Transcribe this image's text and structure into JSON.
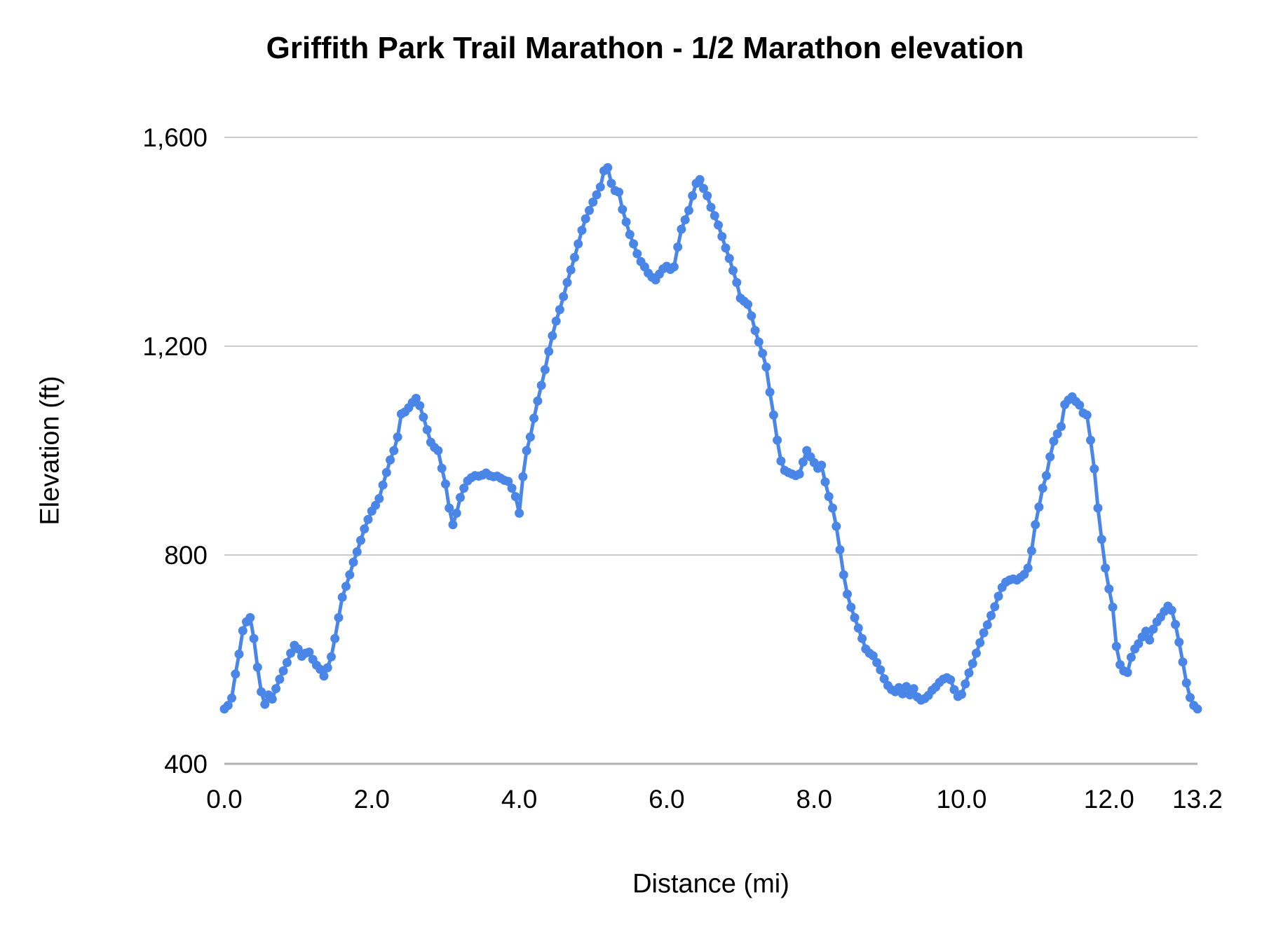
{
  "colors": {
    "series_blue": "#4a86e8",
    "gridline": "#cccccc",
    "baseline": "#b0b0b0",
    "text": "#000000",
    "background": "#ffffff"
  },
  "chart_data": {
    "type": "line",
    "title": "Griffith Park Trail Marathon - 1/2 Marathon elevation",
    "xlabel": "Distance (mi)",
    "ylabel": "Elevation (ft)",
    "xlim": [
      0,
      13.2
    ],
    "ylim": [
      400,
      1600
    ],
    "grid": "horizontal gridlines only",
    "legend": "none",
    "marker": "circle",
    "x_ticks": [
      {
        "value": 0,
        "label": "0.0"
      },
      {
        "value": 2,
        "label": "2.0"
      },
      {
        "value": 4,
        "label": "4.0"
      },
      {
        "value": 6,
        "label": "6.0"
      },
      {
        "value": 8,
        "label": "8.0"
      },
      {
        "value": 10,
        "label": "10.0"
      },
      {
        "value": 12,
        "label": "12.0"
      },
      {
        "value": 13.2,
        "label": "13.2"
      }
    ],
    "y_ticks": [
      {
        "value": 400,
        "label": "400"
      },
      {
        "value": 800,
        "label": "800"
      },
      {
        "value": 1200,
        "label": "1,200"
      },
      {
        "value": 1600,
        "label": "1,600"
      }
    ],
    "series": [
      {
        "name": "Elevation (ft)",
        "color": "#4a86e8",
        "x_unit": "mi",
        "y_unit": "ft",
        "x_start": 0,
        "x_step": 0.05,
        "values": [
          505,
          512,
          526,
          572,
          610,
          655,
          672,
          680,
          640,
          585,
          538,
          514,
          532,
          524,
          544,
          562,
          578,
          594,
          612,
          627,
          620,
          606,
          612,
          614,
          600,
          589,
          581,
          568,
          584,
          605,
          640,
          680,
          719,
          740,
          762,
          786,
          806,
          828,
          850,
          868,
          884,
          895,
          908,
          934,
          958,
          982,
          1000,
          1026,
          1070,
          1074,
          1082,
          1092,
          1100,
          1086,
          1064,
          1040,
          1016,
          1006,
          1000,
          966,
          936,
          890,
          858,
          880,
          910,
          928,
          942,
          948,
          952,
          951,
          953,
          957,
          952,
          950,
          951,
          947,
          943,
          941,
          928,
          912,
          880,
          950,
          1000,
          1026,
          1062,
          1095,
          1125,
          1155,
          1190,
          1220,
          1248,
          1270,
          1295,
          1322,
          1346,
          1370,
          1396,
          1422,
          1444,
          1460,
          1476,
          1490,
          1505,
          1536,
          1542,
          1512,
          1498,
          1495,
          1462,
          1438,
          1414,
          1396,
          1377,
          1362,
          1352,
          1340,
          1332,
          1327,
          1338,
          1348,
          1353,
          1347,
          1352,
          1390,
          1424,
          1442,
          1460,
          1488,
          1512,
          1519,
          1502,
          1488,
          1466,
          1450,
          1432,
          1410,
          1388,
          1368,
          1345,
          1322,
          1292,
          1286,
          1280,
          1258,
          1230,
          1208,
          1186,
          1160,
          1112,
          1068,
          1020,
          980,
          962,
          958,
          955,
          952,
          955,
          978,
          1000,
          988,
          977,
          966,
          972,
          940,
          912,
          890,
          855,
          810,
          762,
          725,
          700,
          680,
          660,
          640,
          620,
          612,
          607,
          594,
          580,
          563,
          550,
          542,
          538,
          546,
          534,
          548,
          532,
          544,
          528,
          522,
          525,
          531,
          541,
          547,
          556,
          562,
          565,
          561,
          542,
          529,
          533,
          553,
          574,
          592,
          612,
          632,
          651,
          666,
          684,
          701,
          721,
          738,
          748,
          752,
          754,
          752,
          757,
          763,
          775,
          808,
          858,
          892,
          928,
          952,
          988,
          1018,
          1032,
          1046,
          1088,
          1097,
          1103,
          1094,
          1087,
          1072,
          1068,
          1020,
          965,
          890,
          830,
          775,
          735,
          700,
          625,
          590,
          578,
          575,
          604,
          620,
          630,
          643,
          654,
          637,
          658,
          672,
          681,
          692,
          702,
          694,
          667,
          633,
          595,
          555,
          527,
          512,
          505
        ]
      }
    ]
  }
}
